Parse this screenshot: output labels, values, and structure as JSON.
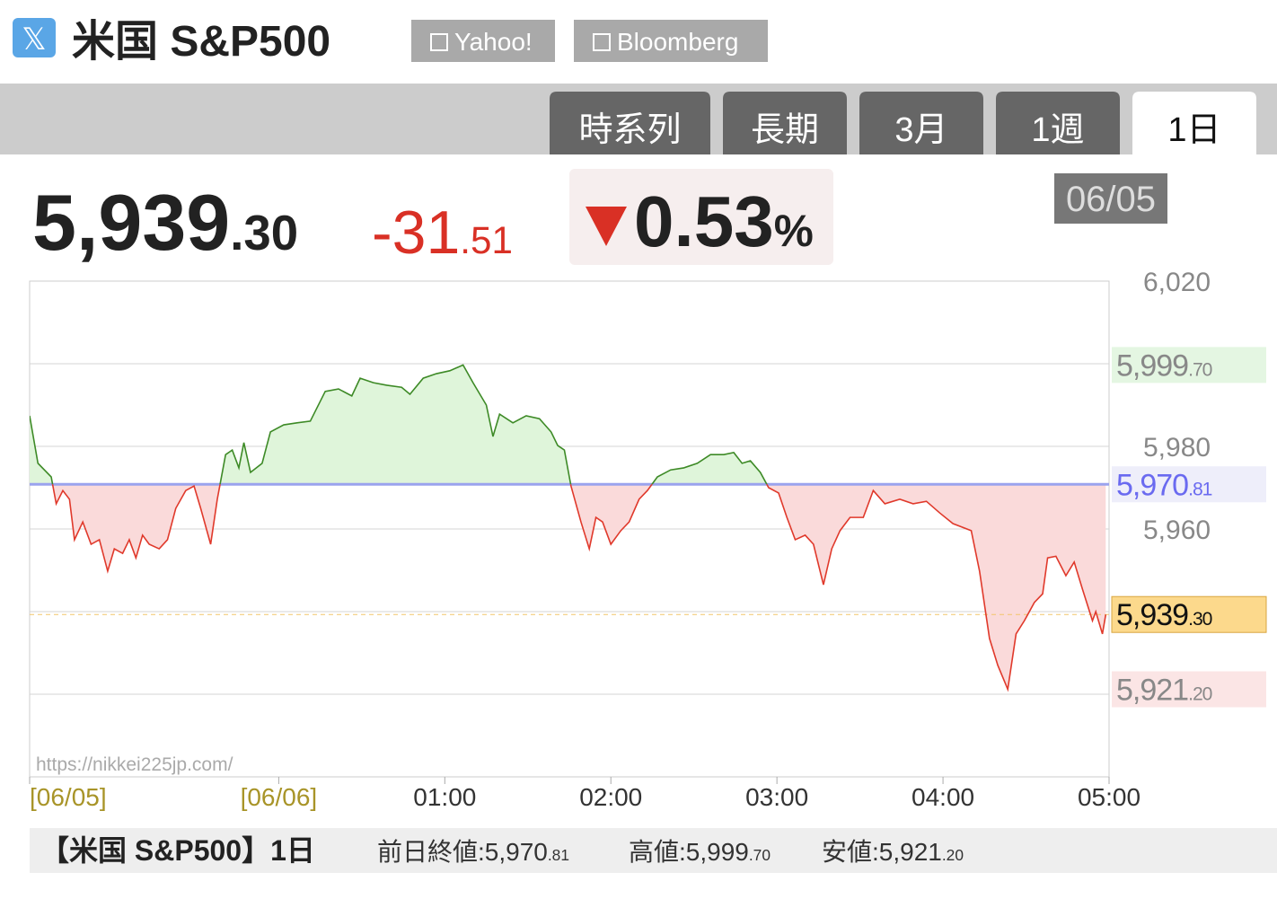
{
  "header": {
    "title": "米国 S&P500",
    "links": [
      "Yahoo!",
      "Bloomberg"
    ],
    "tabs": [
      "時系列",
      "長期",
      "3月",
      "1週",
      "1日"
    ],
    "active_tab": 4
  },
  "quote": {
    "price": {
      "value": 5939.3,
      "label": "5,939.30"
    },
    "change": {
      "value": -31.51,
      "label": "-31.51"
    },
    "change_pct": {
      "value": -0.53,
      "label": "0.53%"
    },
    "date": "06/05"
  },
  "chart_data": {
    "type": "line",
    "watermark": "https://nikkei225jp.com/",
    "xlim": [
      -1.5,
      5
    ],
    "ylim": [
      5900,
      6020
    ],
    "xticks": [
      {
        "value": -1.5,
        "label": "[06/05]"
      },
      {
        "value": 0,
        "label": "[06/06]"
      },
      {
        "value": 1,
        "label": "01:00"
      },
      {
        "value": 2,
        "label": "02:00"
      },
      {
        "value": 3,
        "label": "03:00"
      },
      {
        "value": 4,
        "label": "04:00"
      },
      {
        "value": 5,
        "label": "05:00"
      }
    ],
    "yticks": [
      {
        "value": 6020,
        "label": "6,020"
      },
      {
        "value": 5980,
        "label": "5,980"
      },
      {
        "value": 5960,
        "label": "5,960"
      }
    ],
    "grid_lines": [
      6000,
      5980,
      5960,
      5940,
      5920
    ],
    "grid": true,
    "color_up": "#3d8a26",
    "color_down": "#e0392b",
    "fill_up": "#dff5da",
    "fill_down": "#fadada",
    "prev_close": {
      "value": 5970.81,
      "label": "5,970.81"
    },
    "high": {
      "value": 5999.7,
      "label": "5,999.70"
    },
    "low": {
      "value": 5921.2,
      "label": "5,921.20"
    },
    "last": {
      "value": 5939.3,
      "label": "5,939.30"
    },
    "x": [
      -1.5,
      -1.45,
      -1.37,
      -1.34,
      -1.3,
      -1.26,
      -1.23,
      -1.18,
      -1.13,
      -1.08,
      -1.03,
      -0.99,
      -0.94,
      -0.9,
      -0.86,
      -0.82,
      -0.78,
      -0.72,
      -0.67,
      -0.62,
      -0.56,
      -0.51,
      -0.47,
      -0.41,
      -0.37,
      -0.32,
      -0.28,
      -0.24,
      -0.21,
      -0.17,
      -0.1,
      -0.05,
      0.03,
      0.11,
      0.19,
      0.28,
      0.36,
      0.44,
      0.49,
      0.57,
      0.65,
      0.74,
      0.79,
      0.87,
      0.95,
      1.03,
      1.11,
      1.17,
      1.25,
      1.29,
      1.33,
      1.41,
      1.49,
      1.57,
      1.64,
      1.68,
      1.72,
      1.76,
      1.82,
      1.87,
      1.91,
      1.95,
      2.0,
      2.06,
      2.11,
      2.17,
      2.22,
      2.28,
      2.36,
      2.44,
      2.52,
      2.6,
      2.68,
      2.74,
      2.79,
      2.84,
      2.9,
      2.95,
      3.01,
      3.06,
      3.11,
      3.17,
      3.22,
      3.28,
      3.33,
      3.38,
      3.44,
      3.52,
      3.58,
      3.65,
      3.74,
      3.82,
      3.9,
      3.98,
      4.06,
      4.17,
      4.22,
      4.28,
      4.33,
      4.39,
      4.44,
      4.49,
      4.55,
      4.6,
      4.63,
      4.68,
      4.74,
      4.79,
      4.84,
      4.9,
      4.92,
      4.96,
      4.98
    ],
    "values": [
      5987.4,
      5975.9,
      5972.6,
      5966.1,
      5969.3,
      5967.2,
      5957.4,
      5961.7,
      5956.3,
      5957.4,
      5949.8,
      5955.2,
      5954.1,
      5957.4,
      5953.0,
      5958.5,
      5956.3,
      5955.2,
      5957.4,
      5965.0,
      5969.3,
      5970.4,
      5965.0,
      5956.3,
      5967.2,
      5978.0,
      5979.1,
      5974.8,
      5980.9,
      5973.7,
      5975.9,
      5983.5,
      5985.2,
      5985.7,
      5986.1,
      5993.3,
      5993.9,
      5992.2,
      5996.5,
      5995.4,
      5994.8,
      5994.3,
      5992.6,
      5996.5,
      5997.6,
      5998.3,
      5999.7,
      5995.4,
      5990.0,
      5982.4,
      5987.8,
      5985.7,
      5987.4,
      5986.7,
      5983.5,
      5980.2,
      5979.1,
      5970.4,
      5961.7,
      5955.2,
      5962.8,
      5961.7,
      5956.3,
      5959.6,
      5961.7,
      5967.2,
      5969.3,
      5972.6,
      5974.3,
      5974.8,
      5975.9,
      5978.0,
      5978.0,
      5978.5,
      5975.9,
      5976.5,
      5973.7,
      5970.0,
      5968.7,
      5962.8,
      5957.4,
      5958.5,
      5956.3,
      5946.5,
      5955.2,
      5959.6,
      5962.8,
      5962.8,
      5969.3,
      5966.1,
      5967.2,
      5966.1,
      5966.7,
      5963.9,
      5961.3,
      5959.6,
      5949.8,
      5933.5,
      5927.0,
      5921.2,
      5934.6,
      5937.8,
      5942.2,
      5944.3,
      5953.0,
      5953.4,
      5948.7,
      5952.0,
      5945.4,
      5937.8,
      5940.0,
      5934.6,
      5939.3
    ]
  },
  "footer": {
    "title": "【米国 S&P500】1日",
    "prev_label": "前日終値:",
    "high_label": "高値:",
    "low_label": "安値:"
  }
}
